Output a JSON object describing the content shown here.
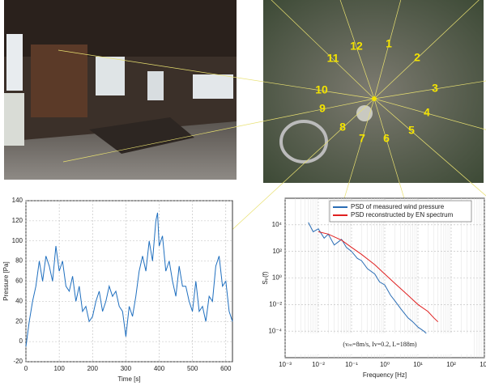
{
  "map": {
    "labels": [
      "1",
      "2",
      "3",
      "4",
      "5",
      "6",
      "7",
      "8",
      "9",
      "10",
      "11",
      "12"
    ]
  },
  "chart_data": [
    {
      "type": "line",
      "xlabel": "Time [s]",
      "ylabel": "Pressure [Pa]",
      "xlim": [
        0,
        620
      ],
      "xticks": [
        0,
        100,
        200,
        300,
        400,
        500,
        600
      ],
      "ylim": [
        -20,
        140
      ],
      "yticks": [
        -20,
        0,
        20,
        40,
        60,
        80,
        100,
        120,
        140
      ],
      "grid": true,
      "x": [
        0,
        10,
        20,
        30,
        40,
        50,
        60,
        70,
        80,
        90,
        100,
        110,
        120,
        130,
        140,
        150,
        160,
        170,
        180,
        190,
        200,
        210,
        220,
        230,
        240,
        250,
        260,
        270,
        280,
        290,
        300,
        310,
        320,
        330,
        340,
        350,
        360,
        370,
        380,
        390,
        395,
        400,
        410,
        420,
        430,
        440,
        450,
        460,
        470,
        480,
        490,
        500,
        510,
        520,
        530,
        540,
        550,
        560,
        570,
        580,
        590,
        600,
        610,
        620
      ],
      "series": [
        {
          "color": "#1f6fbf",
          "values": [
            -5,
            20,
            40,
            55,
            80,
            60,
            85,
            75,
            60,
            95,
            70,
            80,
            55,
            50,
            65,
            40,
            55,
            30,
            35,
            20,
            25,
            40,
            50,
            30,
            40,
            55,
            45,
            50,
            35,
            30,
            5,
            35,
            25,
            45,
            70,
            85,
            70,
            100,
            80,
            120,
            128,
            95,
            105,
            70,
            80,
            60,
            45,
            75,
            55,
            55,
            40,
            30,
            60,
            30,
            35,
            20,
            45,
            40,
            75,
            85,
            55,
            60,
            30,
            20
          ]
        }
      ]
    },
    {
      "type": "line",
      "xlabel": "Frequency [Hz]",
      "ylabel": "Sₚ(f)",
      "log": true,
      "xlim": [
        0.001,
        1000
      ],
      "xticks": [
        {
          "value": 0.001,
          "label": "10⁻³"
        },
        {
          "value": 0.01,
          "label": "10⁻²"
        },
        {
          "value": 0.1,
          "label": "10⁻¹"
        },
        {
          "value": 1,
          "label": "10⁰"
        },
        {
          "value": 10,
          "label": "10¹"
        },
        {
          "value": 100,
          "label": "10²"
        },
        {
          "value": 1000,
          "label": "10³"
        }
      ],
      "ylim": [
        1e-06,
        1000000
      ],
      "yticks": [
        {
          "value": 0.0001,
          "label": "10⁻⁴"
        },
        {
          "value": 0.01,
          "label": "10⁻²"
        },
        {
          "value": 1,
          "label": "10⁰"
        },
        {
          "value": 100,
          "label": "10²"
        },
        {
          "value": 10000,
          "label": "10⁴"
        }
      ],
      "grid": true,
      "legend": "top",
      "annotation": "(vₘ=8m/s, Iv=0.2, L=188m)",
      "series": [
        {
          "name": "PSD of measured wind pressure",
          "color": "#2a6db5",
          "x": [
            0.005,
            0.007,
            0.01,
            0.015,
            0.02,
            0.03,
            0.05,
            0.07,
            0.1,
            0.15,
            0.2,
            0.3,
            0.5,
            0.7,
            1,
            1.5,
            2,
            3,
            5,
            7,
            10,
            15,
            20,
            30,
            50
          ],
          "values": [
            15000,
            3000,
            5000,
            1000,
            2000,
            300,
            800,
            200,
            100,
            30,
            20,
            5,
            2,
            0.5,
            0.3,
            0.05,
            0.02,
            0.005,
            0.001,
            0.0005,
            0.0002,
            0.0001,
            5e-05,
            2e-05,
            1e-05
          ]
        },
        {
          "name": "PSD reconstructed by EN spectrum",
          "color": "#e02020",
          "x": [
            0.01,
            0.02,
            0.05,
            0.1,
            0.2,
            0.5,
            1,
            2,
            5,
            10,
            20,
            30,
            40
          ],
          "values": [
            3000,
            2000,
            700,
            200,
            60,
            10,
            2,
            0.4,
            0.05,
            0.01,
            0.003,
            0.001,
            0.0005
          ]
        }
      ]
    }
  ]
}
